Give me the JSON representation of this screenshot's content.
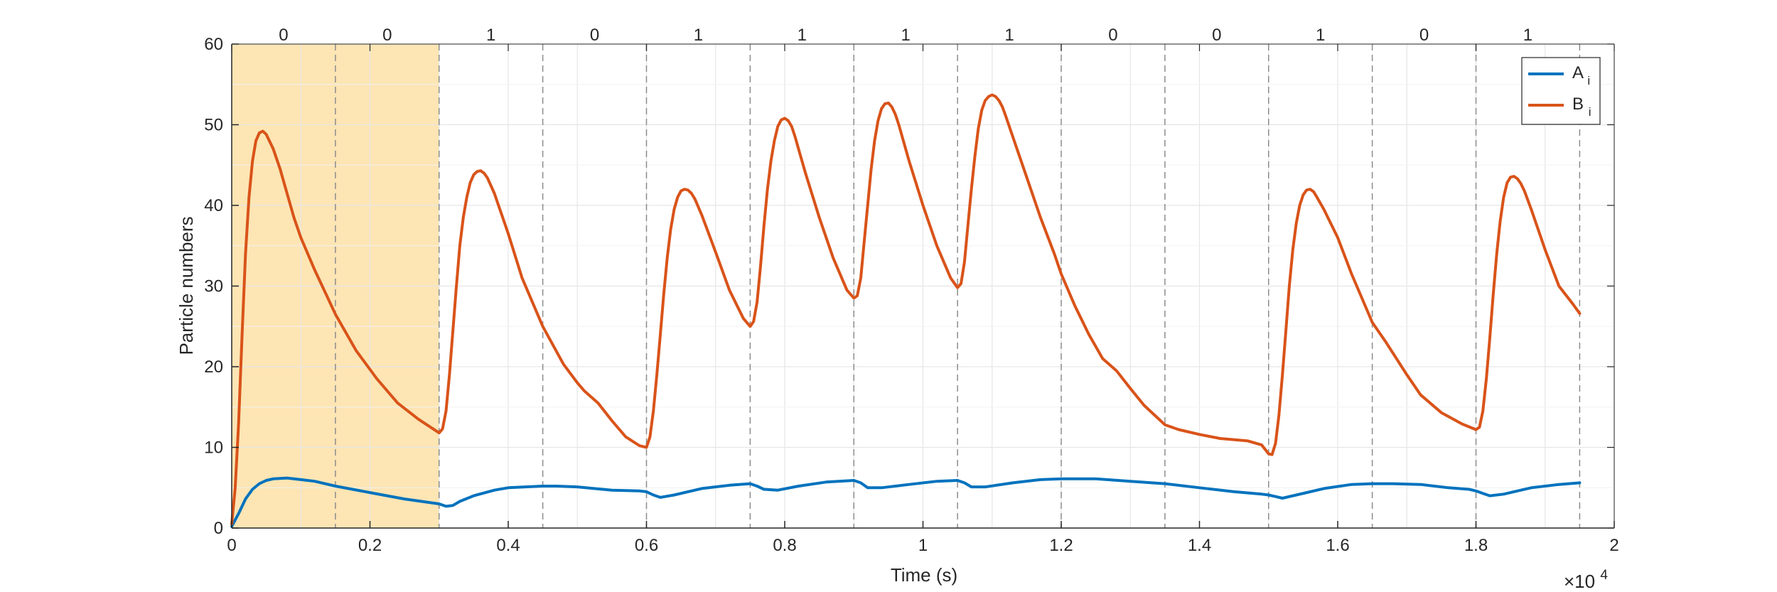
{
  "chart_data": {
    "type": "line",
    "title": "",
    "xlabel": "Time (s)",
    "ylabel": "Particle numbers",
    "x_exponent_label": "×10",
    "x_exponent_power": "4",
    "xlim": [
      0,
      20000
    ],
    "ylim": [
      0,
      60
    ],
    "x_ticks": [
      0,
      2000,
      4000,
      6000,
      8000,
      10000,
      12000,
      14000,
      16000,
      18000,
      20000
    ],
    "x_tick_labels": [
      "0",
      "0.2",
      "0.4",
      "0.6",
      "0.8",
      "1",
      "1.2",
      "1.4",
      "1.6",
      "1.8",
      "2"
    ],
    "x_minor_ticks": [
      1000,
      3000,
      5000,
      7000,
      9000,
      11000,
      13000,
      15000,
      17000,
      19000
    ],
    "y_ticks": [
      0,
      10,
      20,
      30,
      40,
      50,
      60
    ],
    "y_tick_labels": [
      "0",
      "10",
      "20",
      "30",
      "40",
      "50",
      "60"
    ],
    "grid": true,
    "legend_position": "top-right",
    "shaded_region": {
      "x0": 0,
      "x1": 3000,
      "color": "#fde5b4"
    },
    "switch_times": [
      1500,
      3000,
      4500,
      6000,
      7500,
      9000,
      10500,
      12000,
      13500,
      15000,
      16500,
      18000,
      19500
    ],
    "segment_labels": [
      {
        "x": 750,
        "label": "0"
      },
      {
        "x": 2250,
        "label": "0"
      },
      {
        "x": 3750,
        "label": "1"
      },
      {
        "x": 5250,
        "label": "0"
      },
      {
        "x": 6750,
        "label": "1"
      },
      {
        "x": 8250,
        "label": "1"
      },
      {
        "x": 9750,
        "label": "1"
      },
      {
        "x": 11250,
        "label": "1"
      },
      {
        "x": 12750,
        "label": "0"
      },
      {
        "x": 14250,
        "label": "0"
      },
      {
        "x": 15750,
        "label": "1"
      },
      {
        "x": 17250,
        "label": "0"
      },
      {
        "x": 18750,
        "label": "1"
      }
    ],
    "series": [
      {
        "name": "A",
        "subscript": "i",
        "color": "#0072bd",
        "x": [
          0,
          100,
          200,
          300,
          400,
          500,
          600,
          800,
          1000,
          1200,
          1500,
          2000,
          2500,
          3000,
          3100,
          3200,
          3300,
          3500,
          3800,
          4000,
          4500,
          4700,
          5000,
          5500,
          5900,
          6000,
          6100,
          6200,
          6400,
          6800,
          7200,
          7500,
          7600,
          7700,
          7900,
          8200,
          8600,
          9000,
          9100,
          9200,
          9400,
          9800,
          10200,
          10500,
          10600,
          10700,
          10900,
          11300,
          11700,
          12000,
          12500,
          13000,
          13500,
          14000,
          14500,
          14900,
          15000,
          15100,
          15200,
          15400,
          15800,
          16200,
          16500,
          16800,
          17200,
          17600,
          17900,
          18000,
          18100,
          18200,
          18400,
          18800,
          19200,
          19500
        ],
        "y": [
          0.2,
          1.8,
          3.6,
          4.8,
          5.5,
          5.9,
          6.1,
          6.2,
          6.0,
          5.8,
          5.2,
          4.4,
          3.6,
          3.0,
          2.7,
          2.8,
          3.3,
          4.0,
          4.7,
          5.0,
          5.2,
          5.2,
          5.1,
          4.7,
          4.6,
          4.5,
          4.1,
          3.8,
          4.1,
          4.9,
          5.3,
          5.5,
          5.2,
          4.8,
          4.7,
          5.2,
          5.7,
          5.9,
          5.6,
          5.0,
          5.0,
          5.4,
          5.8,
          5.9,
          5.6,
          5.1,
          5.1,
          5.6,
          6.0,
          6.1,
          6.1,
          5.8,
          5.5,
          5.0,
          4.5,
          4.2,
          4.1,
          3.9,
          3.7,
          4.1,
          4.9,
          5.4,
          5.5,
          5.5,
          5.4,
          5.0,
          4.8,
          4.6,
          4.3,
          4.0,
          4.2,
          5.0,
          5.4,
          5.6
        ]
      },
      {
        "name": "B",
        "subscript": "i",
        "color": "#d95319",
        "x": [
          0,
          50,
          100,
          150,
          200,
          250,
          300,
          350,
          400,
          450,
          500,
          600,
          700,
          800,
          900,
          1000,
          1200,
          1500,
          1800,
          2100,
          2400,
          2700,
          3000,
          3050,
          3100,
          3150,
          3200,
          3250,
          3300,
          3350,
          3400,
          3450,
          3500,
          3550,
          3600,
          3650,
          3700,
          3800,
          4000,
          4200,
          4500,
          4800,
          5000,
          5100,
          5300,
          5500,
          5700,
          5900,
          6000,
          6050,
          6100,
          6150,
          6200,
          6250,
          6300,
          6350,
          6400,
          6450,
          6500,
          6550,
          6600,
          6650,
          6700,
          6800,
          7000,
          7200,
          7400,
          7500,
          7550,
          7600,
          7650,
          7700,
          7750,
          7800,
          7850,
          7900,
          7950,
          8000,
          8050,
          8100,
          8150,
          8200,
          8300,
          8500,
          8700,
          8900,
          9000,
          9050,
          9100,
          9150,
          9200,
          9250,
          9300,
          9350,
          9400,
          9450,
          9500,
          9550,
          9600,
          9650,
          9700,
          9800,
          10000,
          10200,
          10400,
          10500,
          10550,
          10600,
          10650,
          10700,
          10750,
          10800,
          10850,
          10900,
          10950,
          11000,
          11050,
          11100,
          11150,
          11200,
          11300,
          11500,
          11700,
          11900,
          12000,
          12200,
          12400,
          12600,
          12800,
          13000,
          13200,
          13400,
          13500,
          13700,
          14000,
          14300,
          14700,
          14900,
          15000,
          15050,
          15100,
          15150,
          15200,
          15250,
          15300,
          15350,
          15400,
          15450,
          15500,
          15550,
          15600,
          15650,
          15700,
          15800,
          16000,
          16200,
          16400,
          16500,
          16700,
          17000,
          17200,
          17500,
          17800,
          18000,
          18050,
          18100,
          18150,
          18200,
          18250,
          18300,
          18350,
          18400,
          18450,
          18500,
          18550,
          18600,
          18650,
          18700,
          18800,
          19000,
          19200,
          19400,
          19500
        ],
        "y": [
          0.5,
          5,
          13,
          24,
          34,
          41,
          45.5,
          48,
          49,
          49.2,
          48.8,
          47,
          44.5,
          41.5,
          38.5,
          36,
          32,
          26.5,
          22,
          18.5,
          15.5,
          13.5,
          11.8,
          12.3,
          14.5,
          19,
          24.5,
          30,
          35,
          38.5,
          41,
          42.8,
          43.8,
          44.2,
          44.3,
          44,
          43.4,
          41.5,
          36.5,
          31,
          25,
          20.3,
          18,
          17,
          15.5,
          13.3,
          11.3,
          10.2,
          10,
          11.3,
          14.5,
          19,
          24,
          29,
          33.5,
          37,
          39.5,
          41,
          41.8,
          42,
          41.9,
          41.5,
          40.8,
          38.8,
          34.2,
          29.5,
          26,
          25,
          25.6,
          28,
          32.5,
          37.5,
          42,
          45.5,
          48,
          49.8,
          50.6,
          50.8,
          50.5,
          49.8,
          48.5,
          47,
          44,
          38.5,
          33.5,
          29.5,
          28.5,
          28.8,
          31,
          35.5,
          40,
          44.5,
          48,
          50.5,
          52,
          52.6,
          52.7,
          52.2,
          51.3,
          50,
          48.5,
          45.5,
          40,
          35,
          31,
          29.8,
          30.3,
          33,
          37.5,
          42,
          46,
          49.5,
          51.8,
          53,
          53.5,
          53.7,
          53.5,
          53,
          52.2,
          51,
          48.5,
          43.5,
          38.5,
          34,
          31.5,
          27.5,
          24,
          21,
          19.5,
          17.3,
          15.2,
          13.6,
          12.8,
          12.2,
          11.6,
          11.1,
          10.8,
          10.3,
          9.2,
          9.1,
          10.5,
          14,
          19,
          24.5,
          30,
          34.5,
          37.8,
          40,
          41.3,
          41.9,
          42,
          41.7,
          41,
          39.5,
          36,
          31.5,
          27.5,
          25.5,
          23,
          19,
          16.5,
          14.3,
          12.9,
          12.2,
          12.5,
          14.5,
          18.5,
          23.5,
          29,
          34,
          38,
          41,
          42.8,
          43.5,
          43.6,
          43.3,
          42.7,
          41.8,
          39.5,
          34.5,
          30,
          27.8,
          26.6
        ]
      }
    ]
  }
}
